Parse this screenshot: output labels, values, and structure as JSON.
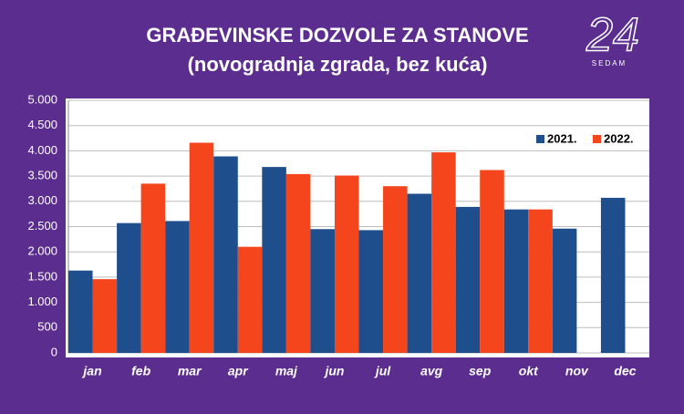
{
  "chart_data": {
    "type": "bar",
    "title": "GRAĐEVINSKE DOZVOLE ZA STANOVE",
    "subtitle": "(novogradnja zgrada, bez kuća)",
    "logo": {
      "number": "24",
      "text": "SEDAM"
    },
    "categories": [
      "jan",
      "feb",
      "mar",
      "apr",
      "maj",
      "jun",
      "jul",
      "avg",
      "sep",
      "okt",
      "nov",
      "dec"
    ],
    "series": [
      {
        "name": "2021.",
        "color": "#1f4e8c",
        "values": [
          1630,
          2570,
          2610,
          3890,
          3680,
          2450,
          2430,
          3150,
          2890,
          2840,
          2460,
          3070
        ]
      },
      {
        "name": "2022.",
        "color": "#f5451c",
        "values": [
          1460,
          3350,
          4160,
          2100,
          3540,
          3510,
          3300,
          3970,
          3620,
          2840,
          null,
          null
        ]
      }
    ],
    "ylim": [
      0,
      5000
    ],
    "yticks": [
      0,
      {
        "value": 500,
        "label": "500"
      },
      {
        "value": 1000,
        "label": "1.000"
      },
      {
        "value": 1500,
        "label": "1.500"
      },
      {
        "value": 2000,
        "label": "2.000"
      },
      {
        "value": 2500,
        "label": "2.500"
      },
      {
        "value": 3000,
        "label": "3.000"
      },
      {
        "value": 3500,
        "label": "3.500"
      },
      {
        "value": 4000,
        "label": "4.000"
      },
      {
        "value": 4500,
        "label": "4.500"
      },
      {
        "value": 5000,
        "label": "5.000"
      }
    ],
    "grid": true,
    "legend": "upper right"
  }
}
